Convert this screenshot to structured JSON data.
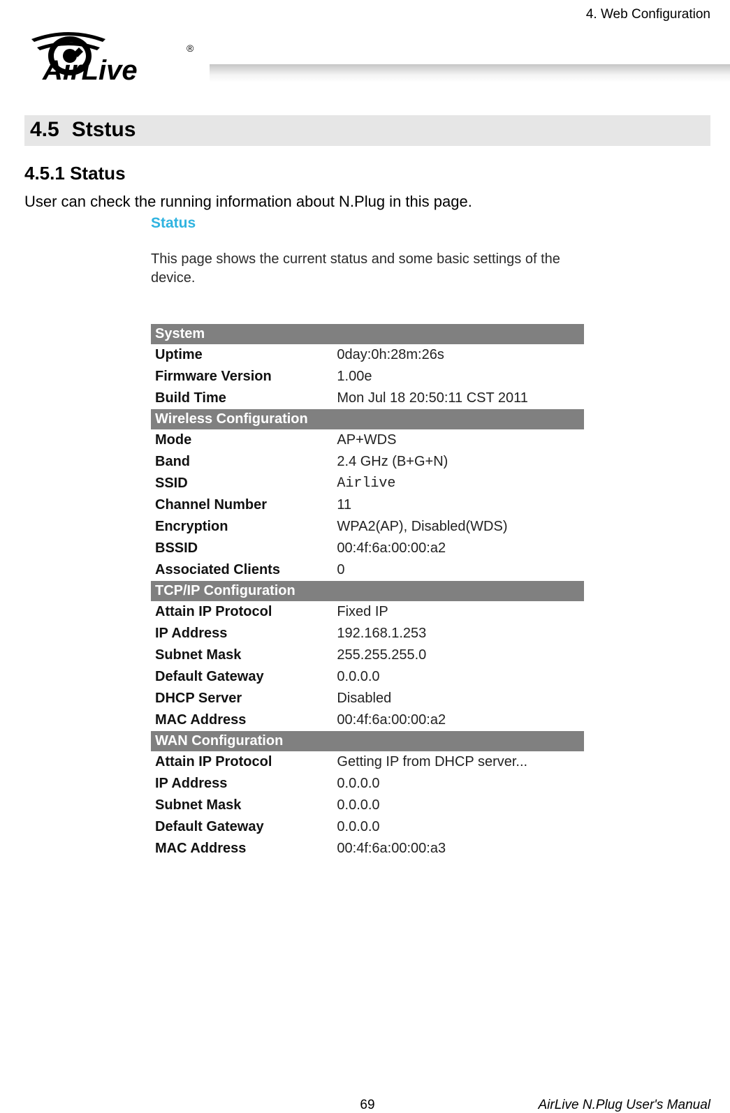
{
  "header": {
    "chapter": "4. Web Configuration"
  },
  "logo": {
    "brand": "AirLive",
    "reg_mark": "®"
  },
  "section": {
    "number": "4.5",
    "title": "Ststus"
  },
  "subsection": {
    "number": "4.5.1",
    "title": "Status"
  },
  "intro_text": "User can check the running information about N.Plug in this page.",
  "screenshot": {
    "title": "Status",
    "description": "This page shows the current status and some basic settings of the device.",
    "colors": {
      "title_color": "#2fb3e0",
      "section_bg": "#808080",
      "section_fg": "#ffffff",
      "text_color": "#222222",
      "label_color": "#111111",
      "background": "#ffffff"
    },
    "fonts": {
      "title_size_pt": 15,
      "body_size_pt": 14,
      "mono_family": "Courier New"
    },
    "sections": [
      {
        "header": "System",
        "rows": [
          {
            "label": "Uptime",
            "value": "0day:0h:28m:26s",
            "mono": false
          },
          {
            "label": "Firmware Version",
            "value": "1.00e",
            "mono": false
          },
          {
            "label": "Build Time",
            "value": "Mon Jul 18 20:50:11 CST 2011",
            "mono": false
          }
        ]
      },
      {
        "header": "Wireless Configuration",
        "rows": [
          {
            "label": "Mode",
            "value": "AP+WDS",
            "mono": false
          },
          {
            "label": "Band",
            "value": "2.4 GHz (B+G+N)",
            "mono": false
          },
          {
            "label": "SSID",
            "value": "Airlive",
            "mono": true
          },
          {
            "label": "Channel Number",
            "value": "11",
            "mono": false
          },
          {
            "label": "Encryption",
            "value": "WPA2(AP), Disabled(WDS)",
            "mono": false
          },
          {
            "label": "BSSID",
            "value": "00:4f:6a:00:00:a2",
            "mono": false
          },
          {
            "label": "Associated Clients",
            "value": "0",
            "mono": false
          }
        ]
      },
      {
        "header": "TCP/IP Configuration",
        "rows": [
          {
            "label": "Attain IP Protocol",
            "value": "Fixed IP",
            "mono": false
          },
          {
            "label": "IP Address",
            "value": "192.168.1.253",
            "mono": false
          },
          {
            "label": "Subnet Mask",
            "value": "255.255.255.0",
            "mono": false
          },
          {
            "label": "Default Gateway",
            "value": "0.0.0.0",
            "mono": false
          },
          {
            "label": "DHCP Server",
            "value": "Disabled",
            "mono": false
          },
          {
            "label": "MAC Address",
            "value": "00:4f:6a:00:00:a2",
            "mono": false
          }
        ]
      },
      {
        "header": "WAN Configuration",
        "rows": [
          {
            "label": "Attain IP Protocol",
            "value": "Getting IP from DHCP server...",
            "mono": false
          },
          {
            "label": "IP Address",
            "value": "0.0.0.0",
            "mono": false
          },
          {
            "label": "Subnet Mask",
            "value": "0.0.0.0",
            "mono": false
          },
          {
            "label": "Default Gateway",
            "value": "0.0.0.0",
            "mono": false
          },
          {
            "label": "MAC Address",
            "value": "00:4f:6a:00:00:a3",
            "mono": false
          }
        ]
      }
    ]
  },
  "footer": {
    "page_number": "69",
    "manual_title": "AirLive N.Plug User's Manual"
  }
}
